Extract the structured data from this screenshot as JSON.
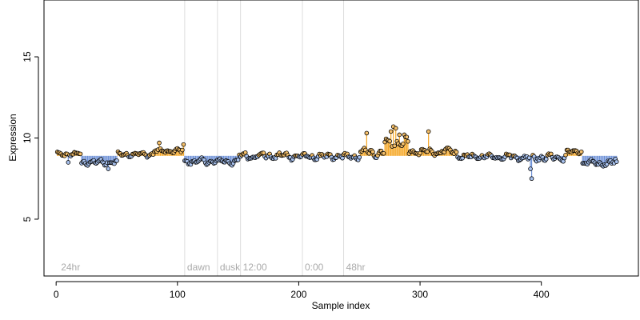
{
  "chart_data": {
    "type": "scatter",
    "title": "",
    "xlabel": "Sample index",
    "ylabel": "Expression",
    "xlim": [
      -10,
      480
    ],
    "ylim": [
      1.5,
      18.5
    ],
    "x_ticks": [
      0,
      100,
      200,
      300,
      400
    ],
    "y_ticks": [
      5,
      10,
      15
    ],
    "baseline": 8.9,
    "colors": {
      "above_baseline": "#f5a623",
      "below_baseline": "#6b8fd6",
      "point_fill_above": "#f5c06b",
      "point_fill_below": "#a9c3f0",
      "annotation_lines": "#dddddd",
      "annotation_text": "#aaaaaa"
    },
    "annotations": [
      {
        "x": 2,
        "label": "24hr",
        "line": false
      },
      {
        "x": 106,
        "label": "dawn",
        "line": true
      },
      {
        "x": 133,
        "label": "dusk",
        "line": true
      },
      {
        "x": 152,
        "label": "12:00",
        "line": true
      },
      {
        "x": 203,
        "label": "0:00",
        "line": true
      },
      {
        "x": 237,
        "label": "48hr",
        "line": true
      }
    ],
    "segments": [
      {
        "x_start": 1,
        "x_end": 20,
        "mean": 9.0,
        "amp": 0.2
      },
      {
        "x_start": 21,
        "x_end": 50,
        "mean": 8.5,
        "amp": 0.25
      },
      {
        "x_start": 51,
        "x_end": 80,
        "mean": 9.0,
        "amp": 0.2
      },
      {
        "x_start": 81,
        "x_end": 104,
        "mean": 9.2,
        "amp": 0.2
      },
      {
        "x_start": 105,
        "x_end": 150,
        "mean": 8.55,
        "amp": 0.25
      },
      {
        "x_start": 151,
        "x_end": 200,
        "mean": 8.9,
        "amp": 0.3
      },
      {
        "x_start": 201,
        "x_end": 250,
        "mean": 8.85,
        "amp": 0.3
      },
      {
        "x_start": 251,
        "x_end": 270,
        "mean": 9.1,
        "amp": 0.35
      },
      {
        "x_start": 271,
        "x_end": 290,
        "mean": 9.7,
        "amp": 0.5
      },
      {
        "x_start": 291,
        "x_end": 330,
        "mean": 9.15,
        "amp": 0.3
      },
      {
        "x_start": 331,
        "x_end": 380,
        "mean": 8.85,
        "amp": 0.25
      },
      {
        "x_start": 381,
        "x_end": 420,
        "mean": 8.8,
        "amp": 0.3
      },
      {
        "x_start": 421,
        "x_end": 433,
        "mean": 9.15,
        "amp": 0.2
      },
      {
        "x_start": 434,
        "x_end": 462,
        "mean": 8.45,
        "amp": 0.25
      }
    ],
    "notable_points": [
      {
        "x": 10,
        "y": 8.5
      },
      {
        "x": 43,
        "y": 8.1
      },
      {
        "x": 85,
        "y": 9.7
      },
      {
        "x": 105,
        "y": 9.6
      },
      {
        "x": 256,
        "y": 10.3
      },
      {
        "x": 276,
        "y": 10.4
      },
      {
        "x": 278,
        "y": 10.7
      },
      {
        "x": 280,
        "y": 10.6
      },
      {
        "x": 283,
        "y": 10.2
      },
      {
        "x": 287,
        "y": 10.2
      },
      {
        "x": 307,
        "y": 10.4
      },
      {
        "x": 391,
        "y": 8.1
      },
      {
        "x": 392,
        "y": 7.5
      },
      {
        "x": 461,
        "y": 8.7
      }
    ]
  }
}
